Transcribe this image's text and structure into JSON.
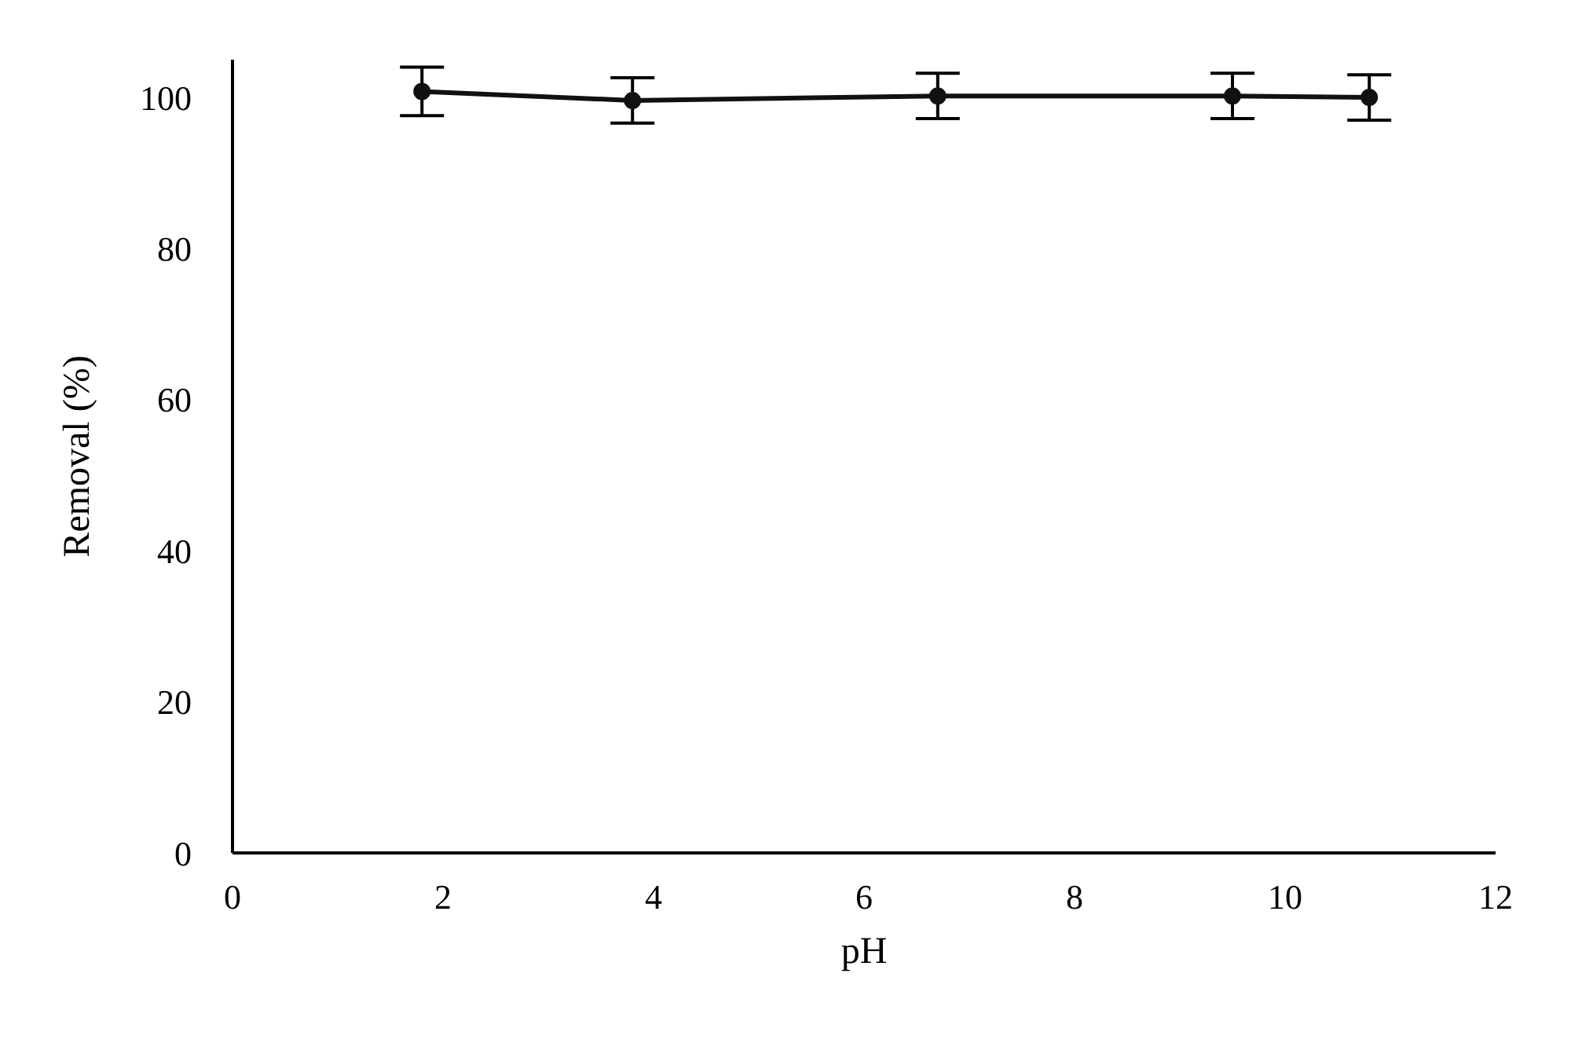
{
  "chart_data": {
    "type": "line",
    "xlabel": "pH",
    "ylabel": "Removal (%)",
    "x": [
      1.8,
      3.8,
      6.7,
      9.5,
      10.8
    ],
    "series": [
      {
        "color": "#111111",
        "values": [
          100.8,
          99.6,
          100.2,
          100.2,
          100.0
        ],
        "errors": [
          3.2,
          3,
          3,
          3,
          3
        ]
      }
    ],
    "xlim": [
      0,
      12
    ],
    "xticks": [
      0,
      2,
      4,
      6,
      8,
      10,
      12
    ],
    "ylim": [
      0,
      105
    ],
    "yticks": [
      0,
      20,
      40,
      60,
      80,
      100
    ],
    "grid": false,
    "marker": "circle",
    "line_style": "solid"
  }
}
